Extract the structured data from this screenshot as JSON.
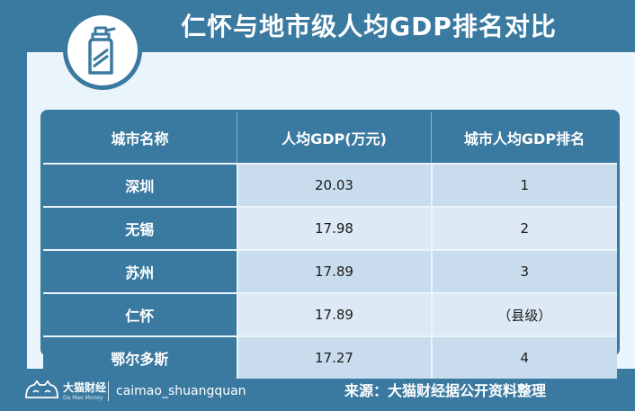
{
  "title": "仁怀与地市级人均GDP排名对比",
  "icon": "spray-bottle-icon",
  "table": {
    "headers": [
      "城市名称",
      "人均GDP(万元)",
      "城市人均GDP排名"
    ],
    "rows": [
      {
        "city": "深圳",
        "gdp": "20.03",
        "rank": "1"
      },
      {
        "city": "无锡",
        "gdp": "17.98",
        "rank": "2"
      },
      {
        "city": "苏州",
        "gdp": "17.89",
        "rank": "3"
      },
      {
        "city": "仁怀",
        "gdp": "17.89",
        "rank": "（县级）"
      },
      {
        "city": "鄂尔多斯",
        "gdp": "17.27",
        "rank": "4"
      }
    ]
  },
  "footer": {
    "logo_name": "大猫财经",
    "logo_sub": "Da Mao Money",
    "handle": "caimao_shuangquan",
    "source": "来源：大猫财经据公开资料整理"
  },
  "colors": {
    "primary": "#3b7aa0",
    "panel": "#e9f4fb",
    "row_odd": "#c8dcee",
    "row_even": "#dde9f4"
  }
}
